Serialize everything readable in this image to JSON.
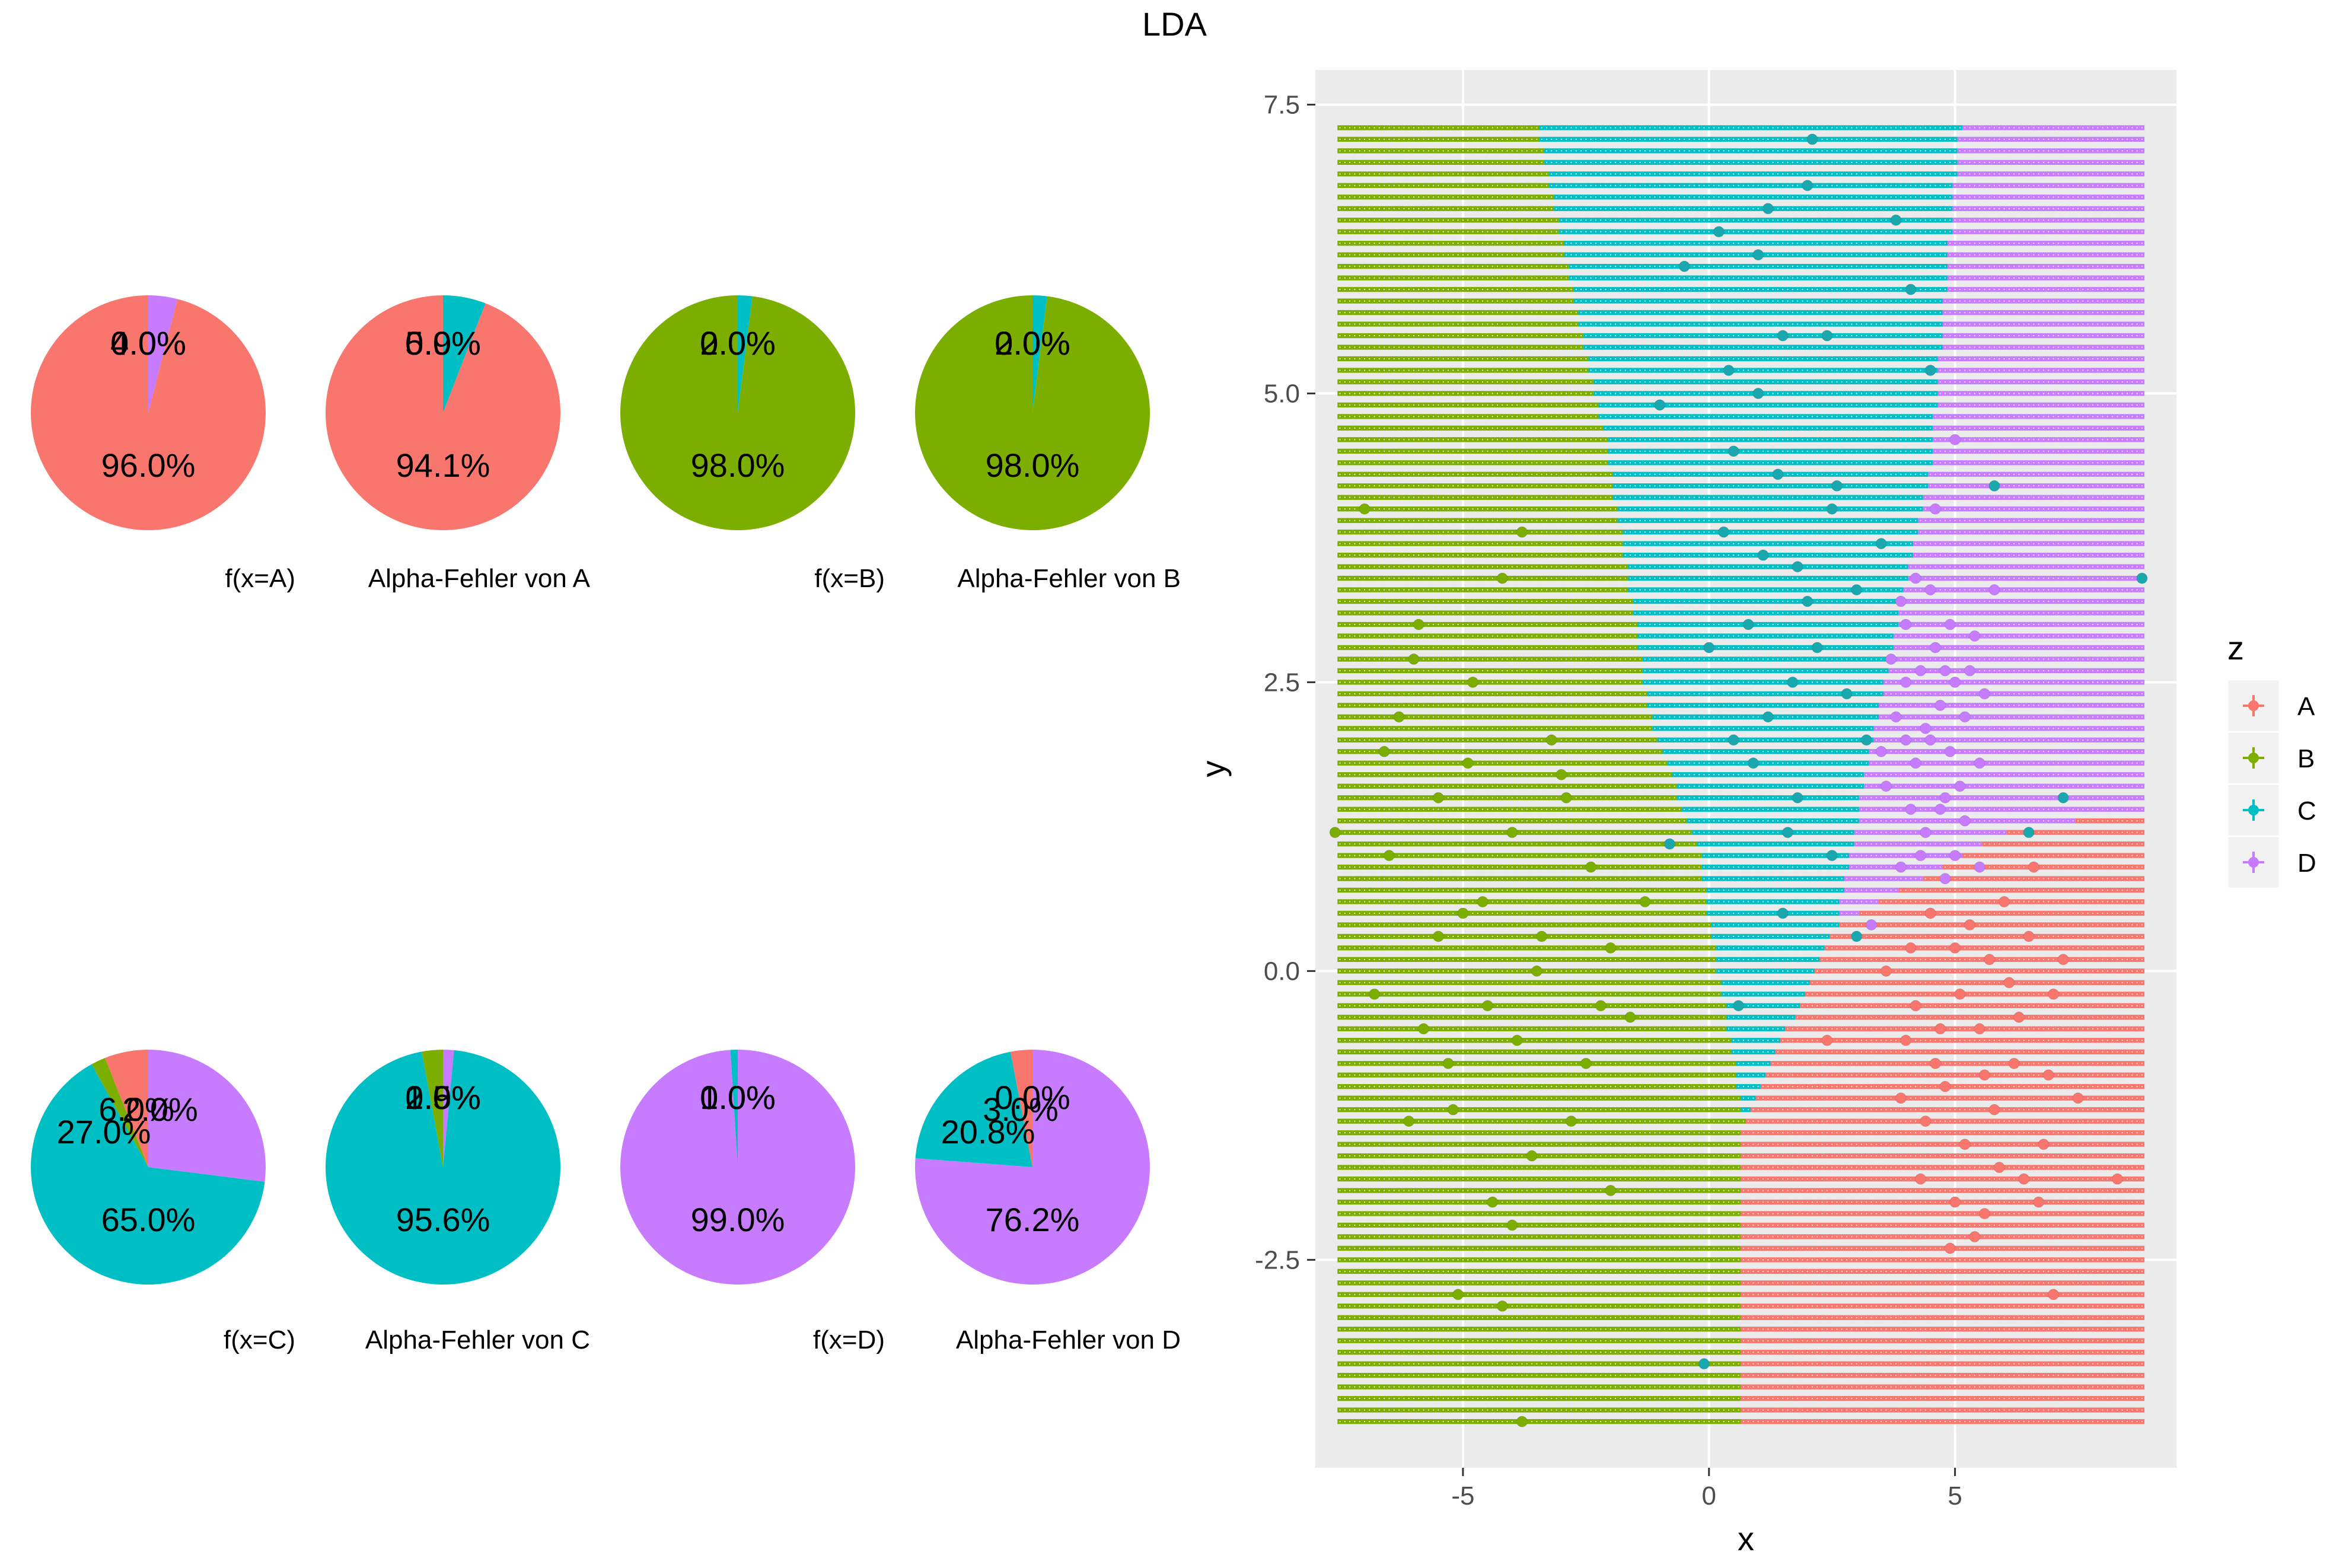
{
  "title": "LDA",
  "colors": {
    "A": "#F8766D",
    "B": "#7CAE00",
    "C": "#00BFC4",
    "D": "#C77CFF"
  },
  "chart_data": [
    {
      "type": "pie",
      "caption": "f(x=A)",
      "slices": [
        {
          "category": "A",
          "value": 96.0,
          "label": "96.0%"
        },
        {
          "category": "B",
          "value": 0.0,
          "label": "0.0%"
        },
        {
          "category": "C",
          "value": 0.0,
          "label": "0.0%"
        },
        {
          "category": "D",
          "value": 4.0,
          "label": "4.0%"
        }
      ]
    },
    {
      "type": "pie",
      "caption": "Alpha-Fehler von A",
      "slices": [
        {
          "category": "A",
          "value": 94.1,
          "label": "94.1%"
        },
        {
          "category": "B",
          "value": 0.0,
          "label": "0.0%"
        },
        {
          "category": "C",
          "value": 5.9,
          "label": "5.9%"
        },
        {
          "category": "D",
          "value": 0.0,
          "label": "0.0%"
        }
      ]
    },
    {
      "type": "pie",
      "caption": "f(x=B)",
      "slices": [
        {
          "category": "A",
          "value": 0.0,
          "label": "0.0%"
        },
        {
          "category": "B",
          "value": 98.0,
          "label": "98.0%"
        },
        {
          "category": "C",
          "value": 2.0,
          "label": "2.0%"
        },
        {
          "category": "D",
          "value": 0.0,
          "label": "0.0%"
        }
      ]
    },
    {
      "type": "pie",
      "caption": "Alpha-Fehler von B",
      "slices": [
        {
          "category": "A",
          "value": 0.0,
          "label": "0.0%"
        },
        {
          "category": "B",
          "value": 98.0,
          "label": "98.0%"
        },
        {
          "category": "C",
          "value": 2.0,
          "label": "2.0%"
        },
        {
          "category": "D",
          "value": 0.0,
          "label": "0.0%"
        }
      ]
    },
    {
      "type": "pie",
      "caption": "f(x=C)",
      "slices": [
        {
          "category": "A",
          "value": 6.0,
          "label": "6.0%"
        },
        {
          "category": "B",
          "value": 2.0,
          "label": "2.0%"
        },
        {
          "category": "C",
          "value": 65.0,
          "label": "65.0%"
        },
        {
          "category": "D",
          "value": 27.0,
          "label": "27.0%"
        }
      ]
    },
    {
      "type": "pie",
      "caption": "Alpha-Fehler von C",
      "slices": [
        {
          "category": "A",
          "value": 0.0,
          "label": "0.0%"
        },
        {
          "category": "B",
          "value": 2.9,
          "label": "2.9%"
        },
        {
          "category": "C",
          "value": 95.6,
          "label": "95.6%"
        },
        {
          "category": "D",
          "value": 1.5,
          "label": "1.5%"
        }
      ]
    },
    {
      "type": "pie",
      "caption": "f(x=D)",
      "slices": [
        {
          "category": "A",
          "value": 0.0,
          "label": "0.0%"
        },
        {
          "category": "B",
          "value": 0.0,
          "label": "0.0%"
        },
        {
          "category": "C",
          "value": 1.0,
          "label": "1.0%"
        },
        {
          "category": "D",
          "value": 99.0,
          "label": "99.0%"
        }
      ]
    },
    {
      "type": "pie",
      "caption": "Alpha-Fehler von D",
      "slices": [
        {
          "category": "A",
          "value": 3.0,
          "label": "3.0%"
        },
        {
          "category": "B",
          "value": 0.0,
          "label": "0.0%"
        },
        {
          "category": "C",
          "value": 20.8,
          "label": "20.8%"
        },
        {
          "category": "D",
          "value": 76.2,
          "label": "76.2%"
        }
      ]
    },
    {
      "type": "scatter",
      "xlabel": "x",
      "ylabel": "y",
      "xlim": [
        -8,
        9.5
      ],
      "ylim": [
        -4.3,
        7.8
      ],
      "xticks": [
        -5,
        0,
        5
      ],
      "xticklabels": [
        "-5",
        "0",
        "5"
      ],
      "yticks": [
        -2.5,
        0,
        2.5,
        5,
        7.5
      ],
      "yticklabels": [
        "-2.5",
        "0.0",
        "2.5",
        "5.0",
        "7.5"
      ],
      "grid": true,
      "legend": {
        "title": "z",
        "entries": [
          "A",
          "B",
          "C",
          "D"
        ],
        "position": "right"
      },
      "decision_regions": {
        "x_range": [
          -7.5,
          8.8
        ],
        "y_range": [
          -3.9,
          7.3
        ],
        "grid_step": 0.1,
        "boundaries": [
          {
            "between": "B|C",
            "path": [
              [
                -3.5,
                7.3
              ],
              [
                -2.1,
                4.6
              ],
              [
                -1.2,
                2.2
              ],
              [
                -0.2,
                1.0
              ],
              [
                0.7,
                -1.3
              ]
            ]
          },
          {
            "between": "B|A",
            "path": [
              [
                0.7,
                -1.3
              ],
              [
                0.6,
                -3.9
              ]
            ]
          },
          {
            "between": "C|A",
            "path": [
              [
                0.7,
                -1.3
              ],
              [
                2.6,
                0.4
              ],
              [
                6.0,
                1.2
              ],
              [
                8.8,
                1.4
              ]
            ]
          },
          {
            "between": "C|D",
            "path": [
              [
                2.6,
                0.4
              ],
              [
                3.4,
                2.2
              ],
              [
                4.5,
                4.4
              ],
              [
                5.1,
                7.3
              ]
            ]
          }
        ]
      },
      "series": [
        {
          "name": "A",
          "points": [
            [
              4.2,
              -0.3
            ],
            [
              4.5,
              0.5
            ],
            [
              5.0,
              0.2
            ],
            [
              5.5,
              -0.5
            ],
            [
              6.0,
              0.6
            ],
            [
              6.5,
              0.3
            ],
            [
              7.0,
              -0.2
            ],
            [
              4.8,
              -1.0
            ],
            [
              5.2,
              -1.5
            ],
            [
              5.8,
              -1.2
            ],
            [
              6.2,
              -0.8
            ],
            [
              6.8,
              -1.5
            ],
            [
              4.0,
              -0.6
            ],
            [
              4.4,
              -1.3
            ],
            [
              5.0,
              -2.0
            ],
            [
              5.6,
              -2.1
            ],
            [
              6.4,
              -1.8
            ],
            [
              7.2,
              0.1
            ],
            [
              3.6,
              0.0
            ],
            [
              4.7,
              -0.5
            ],
            [
              5.3,
              0.4
            ],
            [
              6.1,
              -0.1
            ],
            [
              5.9,
              -1.7
            ],
            [
              4.9,
              -2.4
            ],
            [
              7.0,
              -2.8
            ],
            [
              8.3,
              -1.8
            ],
            [
              2.4,
              -0.6
            ],
            [
              6.6,
              0.9
            ],
            [
              5.1,
              -0.2
            ],
            [
              4.6,
              -0.8
            ],
            [
              5.7,
              0.1
            ],
            [
              6.9,
              -0.9
            ],
            [
              4.3,
              -1.8
            ],
            [
              5.4,
              -2.3
            ],
            [
              6.3,
              -0.4
            ],
            [
              7.5,
              -1.1
            ],
            [
              4.1,
              0.2
            ],
            [
              5.6,
              -0.9
            ],
            [
              6.7,
              -2.0
            ],
            [
              3.9,
              -1.1
            ]
          ]
        },
        {
          "name": "B",
          "points": [
            [
              -6.0,
              2.7
            ],
            [
              -5.5,
              1.5
            ],
            [
              -5.0,
              0.5
            ],
            [
              -4.5,
              -0.3
            ],
            [
              -4.0,
              1.2
            ],
            [
              -3.5,
              0.0
            ],
            [
              -3.0,
              1.7
            ],
            [
              -2.5,
              -0.8
            ],
            [
              -2.0,
              0.2
            ],
            [
              -5.8,
              -0.5
            ],
            [
              -5.2,
              -1.2
            ],
            [
              -4.8,
              2.5
            ],
            [
              -4.2,
              3.4
            ],
            [
              -3.8,
              3.8
            ],
            [
              -6.5,
              1.0
            ],
            [
              -6.8,
              -0.2
            ],
            [
              -7.6,
              1.2
            ],
            [
              -7.0,
              4.0
            ],
            [
              -3.2,
              2.0
            ],
            [
              -2.8,
              -1.3
            ],
            [
              -4.0,
              -2.2
            ],
            [
              -5.1,
              -2.8
            ],
            [
              -4.2,
              -2.9
            ],
            [
              -3.8,
              -3.9
            ],
            [
              -2.0,
              -1.9
            ],
            [
              -1.3,
              0.6
            ],
            [
              -1.6,
              -0.4
            ],
            [
              -5.5,
              0.3
            ],
            [
              -4.6,
              0.6
            ],
            [
              -3.9,
              -0.6
            ],
            [
              -3.4,
              0.3
            ],
            [
              -6.3,
              2.2
            ],
            [
              -5.9,
              3.0
            ],
            [
              -6.1,
              -1.3
            ],
            [
              -4.4,
              -2.0
            ],
            [
              -2.4,
              0.9
            ],
            [
              -2.9,
              1.5
            ],
            [
              -5.3,
              -0.8
            ],
            [
              -4.9,
              1.8
            ],
            [
              -3.6,
              -1.6
            ],
            [
              -2.2,
              -0.3
            ],
            [
              -6.6,
              1.9
            ]
          ]
        },
        {
          "name": "C",
          "points": [
            [
              1.0,
              6.2
            ],
            [
              2.0,
              6.8
            ],
            [
              1.5,
              5.5
            ],
            [
              0.5,
              4.5
            ],
            [
              2.5,
              4.0
            ],
            [
              1.8,
              3.5
            ],
            [
              0.8,
              3.0
            ],
            [
              2.2,
              2.8
            ],
            [
              1.2,
              2.2
            ],
            [
              1.8,
              1.5
            ],
            [
              2.5,
              1.0
            ],
            [
              1.5,
              0.5
            ],
            [
              0.5,
              2.0
            ],
            [
              -0.5,
              6.1
            ],
            [
              -1.0,
              4.9
            ],
            [
              0.3,
              3.8
            ],
            [
              3.0,
              3.3
            ],
            [
              2.8,
              2.4
            ],
            [
              3.8,
              6.5
            ],
            [
              4.1,
              5.9
            ],
            [
              0.9,
              1.8
            ],
            [
              1.4,
              4.3
            ],
            [
              2.0,
              3.2
            ],
            [
              0.0,
              2.8
            ],
            [
              -0.8,
              1.1
            ],
            [
              2.1,
              7.2
            ],
            [
              1.2,
              6.6
            ],
            [
              3.5,
              3.7
            ],
            [
              1.6,
              1.2
            ],
            [
              0.6,
              -0.3
            ],
            [
              1.0,
              5.0
            ],
            [
              2.4,
              5.5
            ],
            [
              0.2,
              6.4
            ],
            [
              3.2,
              2.0
            ],
            [
              1.7,
              2.5
            ],
            [
              1.1,
              3.6
            ],
            [
              2.6,
              4.2
            ],
            [
              0.4,
              5.2
            ],
            [
              4.5,
              5.2
            ],
            [
              5.8,
              4.2
            ],
            [
              6.5,
              1.2
            ],
            [
              7.2,
              1.5
            ],
            [
              8.8,
              3.4
            ],
            [
              -0.1,
              -3.4
            ],
            [
              3.0,
              0.3
            ]
          ]
        },
        {
          "name": "D",
          "points": [
            [
              4.0,
              2.5
            ],
            [
              4.5,
              2.0
            ],
            [
              5.0,
              2.5
            ],
            [
              4.2,
              1.8
            ],
            [
              4.8,
              1.5
            ],
            [
              5.2,
              2.2
            ],
            [
              4.6,
              2.8
            ],
            [
              3.8,
              2.2
            ],
            [
              4.4,
              1.2
            ],
            [
              5.0,
              1.0
            ],
            [
              5.5,
              1.8
            ],
            [
              4.0,
              3.0
            ],
            [
              3.6,
              1.6
            ],
            [
              4.9,
              3.0
            ],
            [
              5.3,
              2.6
            ],
            [
              4.7,
              2.3
            ],
            [
              4.3,
              2.6
            ],
            [
              5.1,
              1.6
            ],
            [
              4.1,
              1.4
            ],
            [
              3.9,
              0.9
            ],
            [
              4.8,
              0.8
            ],
            [
              5.4,
              2.9
            ],
            [
              3.5,
              1.9
            ],
            [
              4.5,
              3.3
            ],
            [
              5.0,
              4.6
            ],
            [
              4.2,
              3.4
            ],
            [
              4.6,
              4.0
            ],
            [
              5.6,
              2.4
            ],
            [
              3.7,
              2.7
            ],
            [
              4.4,
              2.1
            ],
            [
              5.2,
              1.3
            ],
            [
              4.0,
              2.0
            ],
            [
              4.9,
              1.9
            ],
            [
              4.3,
              1.0
            ],
            [
              3.3,
              0.4
            ],
            [
              5.8,
              3.3
            ],
            [
              4.7,
              1.4
            ],
            [
              5.5,
              0.9
            ],
            [
              3.9,
              3.2
            ],
            [
              4.8,
              2.6
            ]
          ]
        }
      ]
    }
  ]
}
